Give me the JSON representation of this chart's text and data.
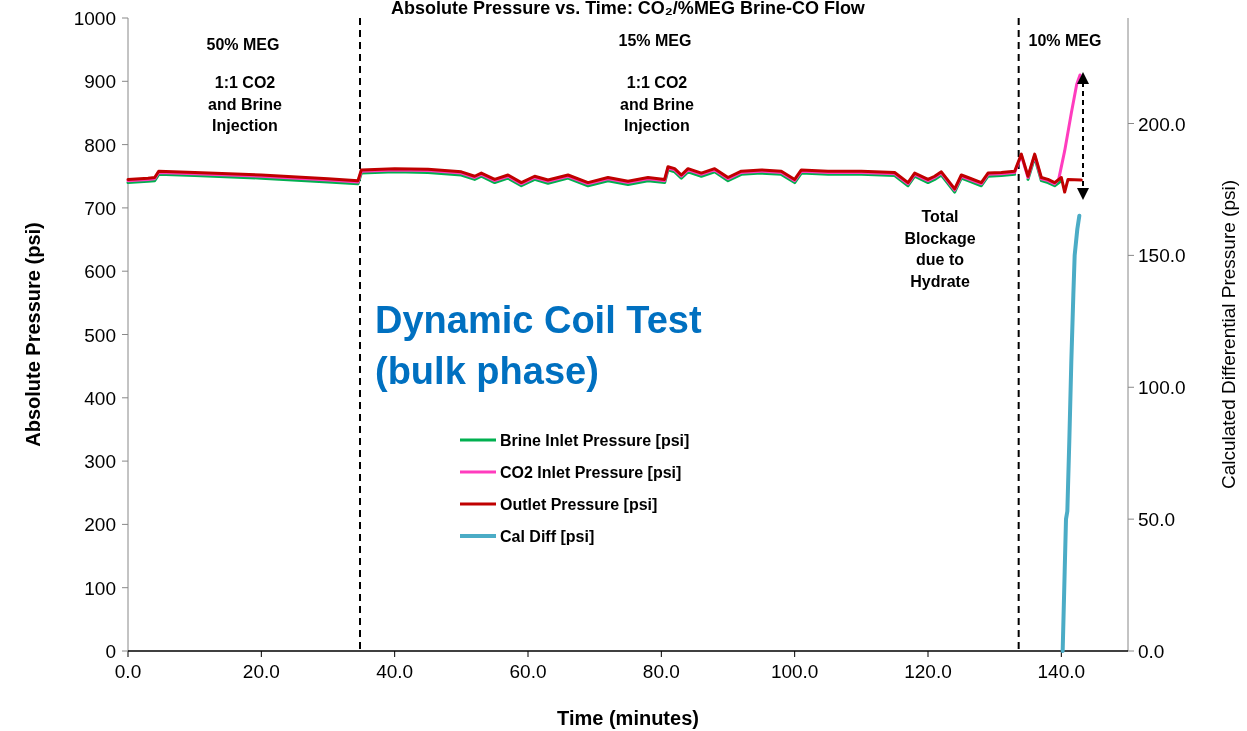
{
  "chart_data": {
    "type": "line",
    "title": "Absolute Pressure vs. Time: CO₂/%MEG Brine-CO Flow",
    "xlabel": "Time (minutes)",
    "ylabel": "Absolute Pressure (psi)",
    "y2label": "Calculated Differential Pressure (psi)",
    "xlim": [
      0,
      150
    ],
    "xticks": [
      {
        "value": 0,
        "label": "0.0"
      },
      {
        "value": 20,
        "label": "20.0"
      },
      {
        "value": 40,
        "label": "40.0"
      },
      {
        "value": 60,
        "label": "60.0"
      },
      {
        "value": 80,
        "label": "80.0"
      },
      {
        "value": 100,
        "label": "100.0"
      },
      {
        "value": 120,
        "label": "120.0"
      },
      {
        "value": 140,
        "label": "140.0"
      }
    ],
    "ylim": [
      0,
      1000
    ],
    "yticks": [
      0,
      100,
      200,
      300,
      400,
      500,
      600,
      700,
      800,
      900,
      1000
    ],
    "y2lim": [
      0,
      240
    ],
    "y2ticks": [
      {
        "value": 0,
        "label": "0.0"
      },
      {
        "value": 50,
        "label": "50.0"
      },
      {
        "value": 100,
        "label": "100.0"
      },
      {
        "value": 150,
        "label": "150.0"
      },
      {
        "value": 200,
        "label": "200.0"
      }
    ],
    "grid": false,
    "legend": "center",
    "marker": "none",
    "line_style": "solid",
    "series": [
      {
        "name": "Brine Inlet Pressure [psi]",
        "color": "#00b050",
        "x": [
          0,
          3,
          4,
          4.6,
          10,
          20,
          30,
          34.5,
          35,
          40,
          45,
          50,
          52,
          53,
          55,
          57,
          59,
          61,
          63,
          66,
          69,
          72,
          75,
          78,
          80.5,
          81,
          82,
          83,
          84,
          86,
          88,
          90,
          92,
          95,
          98,
          100,
          101,
          105,
          110,
          115,
          117,
          118,
          120,
          121,
          122,
          124,
          125,
          126,
          128,
          129,
          131,
          133,
          134,
          135,
          136,
          137,
          138,
          139,
          140
        ],
        "values": [
          740,
          742,
          743,
          753,
          751,
          747,
          741,
          738,
          755,
          757,
          756,
          752,
          745,
          750,
          740,
          747,
          735,
          745,
          739,
          747,
          735,
          743,
          737,
          743,
          740,
          760,
          757,
          747,
          757,
          750,
          757,
          743,
          753,
          755,
          753,
          740,
          755,
          753,
          753,
          751,
          735,
          750,
          740,
          745,
          752,
          725,
          747,
          743,
          735,
          750,
          751,
          753,
          null,
          745,
          780,
          743,
          740,
          735,
          743
        ]
      },
      {
        "name": "CO2 Inlet Pressure [psi]",
        "color": "#ff3cbe",
        "x": [
          0,
          3,
          4,
          4.6,
          10,
          20,
          30,
          34.5,
          35,
          40,
          45,
          50,
          52,
          53,
          55,
          57,
          59,
          61,
          63,
          66,
          69,
          72,
          75,
          78,
          80.5,
          81,
          82,
          83,
          84,
          86,
          88,
          90,
          92,
          95,
          98,
          100,
          101,
          105,
          110,
          115,
          117,
          118,
          120,
          121,
          122,
          124,
          125,
          126,
          128,
          129,
          131,
          133,
          134,
          135,
          136,
          137,
          138,
          139,
          139.6,
          140.5,
          141.5,
          142.3,
          142.8
        ],
        "values": [
          743,
          745,
          746,
          756,
          754,
          750,
          744,
          741,
          758,
          760,
          759,
          755,
          748,
          753,
          743,
          750,
          738,
          748,
          742,
          750,
          738,
          746,
          740,
          746,
          743,
          763,
          760,
          750,
          760,
          753,
          760,
          746,
          756,
          758,
          756,
          743,
          758,
          756,
          756,
          754,
          738,
          753,
          743,
          748,
          755,
          728,
          750,
          746,
          738,
          753,
          754,
          756,
          783,
          748,
          783,
          746,
          743,
          738,
          745,
          790,
          850,
          895,
          910
        ]
      },
      {
        "name": "Outlet Pressure [psi]",
        "color": "#c00000",
        "x": [
          0,
          3,
          4,
          4.6,
          10,
          20,
          30,
          34.5,
          35,
          40,
          45,
          50,
          52,
          53,
          55,
          57,
          59,
          61,
          63,
          66,
          69,
          72,
          75,
          78,
          80.5,
          81,
          82,
          83,
          84,
          86,
          88,
          90,
          92,
          95,
          98,
          100,
          101,
          105,
          110,
          115,
          117,
          118,
          120,
          121,
          122,
          124,
          125,
          126,
          128,
          129,
          131,
          133,
          134,
          135,
          136,
          137,
          138,
          139,
          140,
          140.5,
          141,
          143
        ],
        "values": [
          745,
          747,
          748,
          758,
          756,
          752,
          746,
          743,
          760,
          762,
          761,
          757,
          750,
          755,
          745,
          752,
          740,
          750,
          744,
          752,
          740,
          748,
          742,
          748,
          745,
          765,
          762,
          752,
          762,
          755,
          762,
          748,
          758,
          760,
          758,
          745,
          760,
          758,
          758,
          756,
          740,
          755,
          745,
          750,
          757,
          730,
          752,
          748,
          740,
          755,
          756,
          758,
          785,
          750,
          785,
          748,
          745,
          740,
          748,
          725,
          745,
          744
        ]
      },
      {
        "name": "Cal Diff [psi]",
        "color": "#4bacc6",
        "axis": "y2",
        "x": [
          140.2,
          140.5,
          140.7,
          140.9,
          141.2,
          141.5,
          141.8,
          142,
          142.4,
          142.7
        ],
        "values": [
          0,
          30,
          50,
          53,
          80,
          110,
          135,
          150,
          160,
          165
        ]
      }
    ],
    "ref_lines": [
      {
        "axis": "x",
        "value": 34.8,
        "line_style": "dashed",
        "color": "#000000"
      },
      {
        "axis": "x",
        "value": 133.6,
        "line_style": "dashed",
        "color": "#000000"
      }
    ],
    "annotations": [
      "50% MEG",
      "1:1 CO2\nand Brine\nInjection",
      "15% MEG",
      "1:1 CO2\nand Brine\nInjection",
      "10% MEG",
      "Total\nBlockage\ndue to\nHydrate",
      "Dynamic Coil Test\n(bulk phase)"
    ]
  }
}
